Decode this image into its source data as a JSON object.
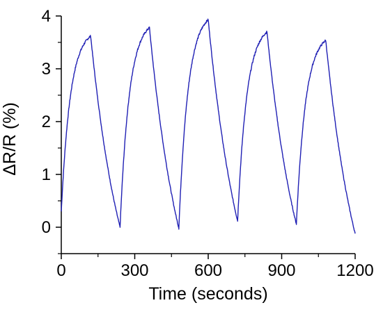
{
  "chart_data": {
    "type": "line",
    "title": "",
    "xlabel": "Time (seconds)",
    "ylabel": "ΔR/R (%)",
    "xlim": [
      0,
      1200
    ],
    "ylim": [
      -0.5,
      4
    ],
    "xticks": [
      0,
      300,
      600,
      900,
      1200
    ],
    "yticks": [
      0,
      1,
      2,
      3,
      4
    ],
    "xtick_labels": [
      "0",
      "300",
      "600",
      "900",
      "1200"
    ],
    "ytick_labels": [
      "0",
      "1",
      "2",
      "3",
      "4"
    ],
    "grid": false,
    "legend": "none",
    "line_color": "#1f1fb4",
    "series": [
      {
        "cycles": [
          {
            "start": [
              0,
              0.3
            ],
            "peak": [
              120,
              3.62
            ],
            "end": [
              240,
              0.0
            ]
          },
          {
            "start": [
              240,
              0.0
            ],
            "peak": [
              360,
              3.78
            ],
            "end": [
              480,
              -0.02
            ]
          },
          {
            "start": [
              480,
              -0.02
            ],
            "peak": [
              600,
              3.93
            ],
            "end": [
              720,
              0.12
            ]
          },
          {
            "start": [
              720,
              0.12
            ],
            "peak": [
              840,
              3.7
            ],
            "end": [
              960,
              0.06
            ]
          },
          {
            "start": [
              960,
              0.06
            ],
            "peak": [
              1080,
              3.54
            ],
            "end": [
              1200,
              -0.12
            ]
          }
        ]
      }
    ]
  }
}
